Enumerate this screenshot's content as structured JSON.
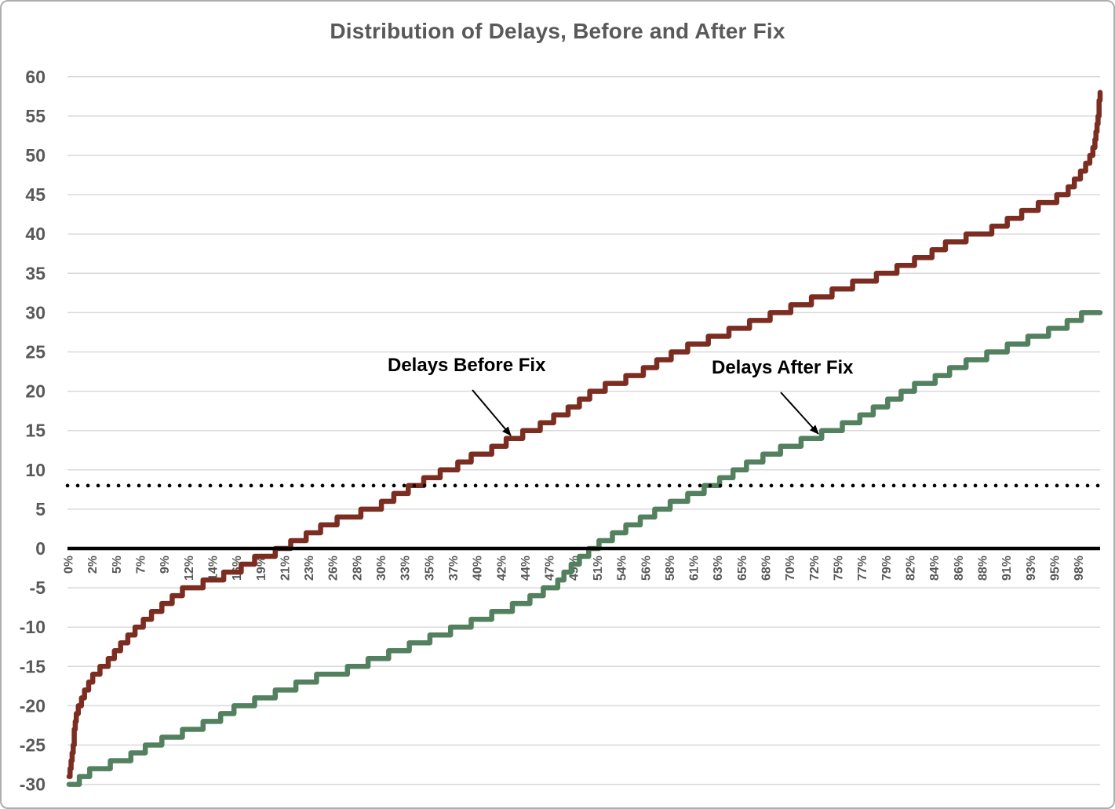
{
  "title": "Distribution of Delays, Before and After Fix",
  "annotations": {
    "before_label": "Delays Before Fix",
    "after_label": "Delays After Fix"
  },
  "colors": {
    "before_series": "#7C2D21",
    "after_series": "#53805F",
    "gridline": "#D9D9D9",
    "axis_text": "#595959",
    "title_text": "#595959",
    "zero_line": "#000000",
    "dotted_reference_line": "#000000",
    "annotation_text": "#000000"
  },
  "chart_data": {
    "type": "line",
    "subtype": "step-percentile-distribution",
    "title": "Distribution of Delays, Before and After Fix",
    "xlabel": "",
    "ylabel": "",
    "grid": "horizontal",
    "legend": "none (inline text annotations with arrows)",
    "x_axis": {
      "unit": "percentile",
      "range": [
        0,
        100
      ],
      "tick_labels": [
        "0%",
        "2%",
        "5%",
        "7%",
        "9%",
        "12%",
        "14%",
        "16%",
        "19%",
        "21%",
        "23%",
        "26%",
        "28%",
        "30%",
        "33%",
        "35%",
        "37%",
        "40%",
        "42%",
        "44%",
        "47%",
        "49%",
        "51%",
        "54%",
        "56%",
        "58%",
        "61%",
        "63%",
        "65%",
        "68%",
        "70%",
        "72%",
        "75%",
        "77%",
        "79%",
        "82%",
        "84%",
        "86%",
        "88%",
        "91%",
        "93%",
        "95%",
        "98%"
      ],
      "tick_label_rotation_deg": -90
    },
    "y_axis": {
      "min": -30,
      "max": 60,
      "step": 5,
      "ticks": [
        60,
        55,
        50,
        45,
        40,
        35,
        30,
        25,
        20,
        15,
        10,
        5,
        0,
        -5,
        -10,
        -15,
        -20,
        -25,
        -30
      ]
    },
    "reference_lines": [
      {
        "y": 0,
        "style": "solid",
        "width": 4.5,
        "color": "#000000"
      },
      {
        "y": 8,
        "style": "dotted",
        "width": 4.6,
        "color": "#000000"
      }
    ],
    "series": [
      {
        "name": "Delays Before Fix",
        "color": "#7C2D21",
        "step": true,
        "points": [
          [
            0,
            -29
          ],
          [
            0.3,
            -26
          ],
          [
            0.6,
            -22
          ],
          [
            1,
            -20
          ],
          [
            1.6,
            -18
          ],
          [
            2.5,
            -16
          ],
          [
            3.5,
            -15
          ],
          [
            5,
            -12.5
          ],
          [
            6,
            -11
          ],
          [
            7.5,
            -9
          ],
          [
            9,
            -7.5
          ],
          [
            11,
            -5.5
          ],
          [
            12,
            -5
          ],
          [
            14,
            -4
          ],
          [
            16,
            -3
          ],
          [
            18,
            -1.5
          ],
          [
            20,
            -0.5
          ],
          [
            21.5,
            0.5
          ],
          [
            23,
            1.5
          ],
          [
            25,
            3
          ],
          [
            27,
            4
          ],
          [
            29.5,
            5
          ],
          [
            31,
            6
          ],
          [
            32,
            7
          ],
          [
            33.8,
            8
          ],
          [
            35,
            9
          ],
          [
            37,
            10
          ],
          [
            39,
            11.5
          ],
          [
            41,
            12.5
          ],
          [
            43,
            14
          ],
          [
            45,
            15
          ],
          [
            47,
            16.5
          ],
          [
            49,
            18
          ],
          [
            51,
            20
          ],
          [
            53,
            21
          ],
          [
            55,
            22
          ],
          [
            57,
            23.5
          ],
          [
            59,
            25
          ],
          [
            61,
            26
          ],
          [
            63,
            27
          ],
          [
            65,
            28
          ],
          [
            67,
            29
          ],
          [
            69,
            30
          ],
          [
            71,
            31
          ],
          [
            73,
            32
          ],
          [
            75,
            33
          ],
          [
            77,
            34
          ],
          [
            79.5,
            35
          ],
          [
            81,
            36
          ],
          [
            83,
            37
          ],
          [
            85,
            38.5
          ],
          [
            87,
            39.5
          ],
          [
            89.5,
            40.5
          ],
          [
            91,
            41.5
          ],
          [
            93,
            43
          ],
          [
            95,
            44
          ],
          [
            96.5,
            45
          ],
          [
            97.5,
            46.5
          ],
          [
            98.3,
            48
          ],
          [
            99,
            49.5
          ],
          [
            99.4,
            51
          ],
          [
            99.7,
            54
          ],
          [
            100,
            58
          ]
        ]
      },
      {
        "name": "Delays After Fix",
        "color": "#53805F",
        "step": true,
        "points": [
          [
            0,
            -30
          ],
          [
            1,
            -29.5
          ],
          [
            2,
            -28.5
          ],
          [
            4,
            -27.5
          ],
          [
            6,
            -26.5
          ],
          [
            8,
            -25
          ],
          [
            10,
            -24
          ],
          [
            12,
            -23
          ],
          [
            14,
            -22
          ],
          [
            16,
            -20.5
          ],
          [
            17,
            -20
          ],
          [
            19,
            -19
          ],
          [
            21,
            -18
          ],
          [
            23,
            -17
          ],
          [
            25,
            -16
          ],
          [
            27,
            -15.5
          ],
          [
            28,
            -15
          ],
          [
            30,
            -14
          ],
          [
            32,
            -13
          ],
          [
            34,
            -12
          ],
          [
            36,
            -11
          ],
          [
            38,
            -10
          ],
          [
            40,
            -9
          ],
          [
            42,
            -8
          ],
          [
            44,
            -7
          ],
          [
            46,
            -5.5
          ],
          [
            47,
            -5
          ],
          [
            48,
            -3.5
          ],
          [
            49,
            -2
          ],
          [
            50,
            -1
          ],
          [
            50.8,
            0
          ],
          [
            52,
            1
          ],
          [
            54,
            2.5
          ],
          [
            56,
            4
          ],
          [
            57.5,
            5
          ],
          [
            59,
            6
          ],
          [
            61,
            7
          ],
          [
            62.2,
            8
          ],
          [
            64,
            9
          ],
          [
            64.8,
            10
          ],
          [
            66.5,
            11
          ],
          [
            68,
            12
          ],
          [
            70,
            13
          ],
          [
            72,
            14
          ],
          [
            74,
            15
          ],
          [
            76,
            16
          ],
          [
            78,
            17.5
          ],
          [
            80,
            19
          ],
          [
            82,
            20.5
          ],
          [
            84,
            21.5
          ],
          [
            86,
            23
          ],
          [
            88,
            24
          ],
          [
            90,
            25
          ],
          [
            92,
            26
          ],
          [
            94,
            27
          ],
          [
            96,
            28
          ],
          [
            97.5,
            29
          ],
          [
            98.8,
            30
          ],
          [
            100,
            30
          ]
        ]
      }
    ]
  }
}
